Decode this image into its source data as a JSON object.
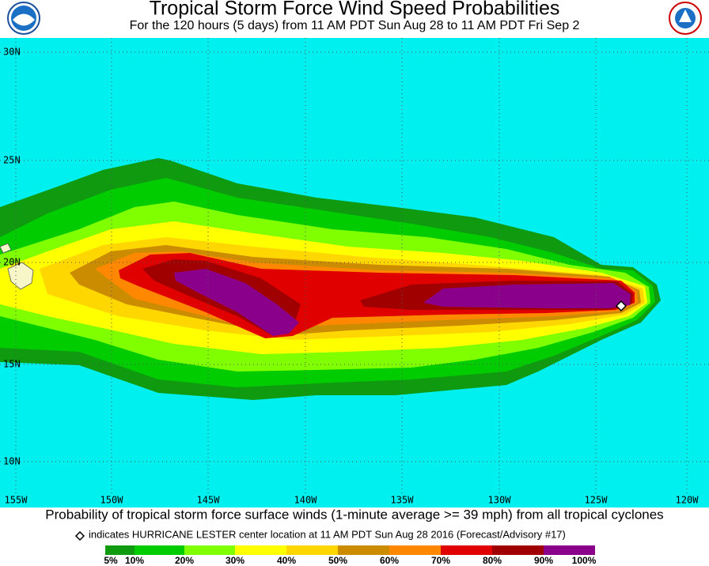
{
  "header": {
    "title": "Tropical Storm Force Wind Speed Probabilities",
    "subtitle": "For the 120 hours (5 days) from 11 AM PDT Sun Aug 28 to 11 AM PDT Fri Sep 2"
  },
  "map": {
    "lat_labels": [
      "30N",
      "25N",
      "20N",
      "15N",
      "10N"
    ],
    "lon_labels": [
      "155W",
      "150W",
      "145W",
      "140W",
      "135W",
      "130W",
      "125W",
      "120W"
    ]
  },
  "footer": {
    "caption": "Probability of tropical storm force surface winds (1-minute average >= 39 mph) from all tropical cyclones",
    "note": "indicates HURRICANE LESTER center location at 11 AM PDT Sun Aug 28 2016 (Forecast/Advisory #17)"
  },
  "legend": {
    "labels": [
      "5%",
      "10%",
      "20%",
      "30%",
      "40%",
      "50%",
      "60%",
      "70%",
      "80%",
      "90%",
      "100%"
    ],
    "colors": [
      "#109a10",
      "#00cc00",
      "#80ff00",
      "#ffff00",
      "#ffd700",
      "#cc8c00",
      "#ff8800",
      "#e00000",
      "#a00000",
      "#8b008b"
    ]
  }
}
